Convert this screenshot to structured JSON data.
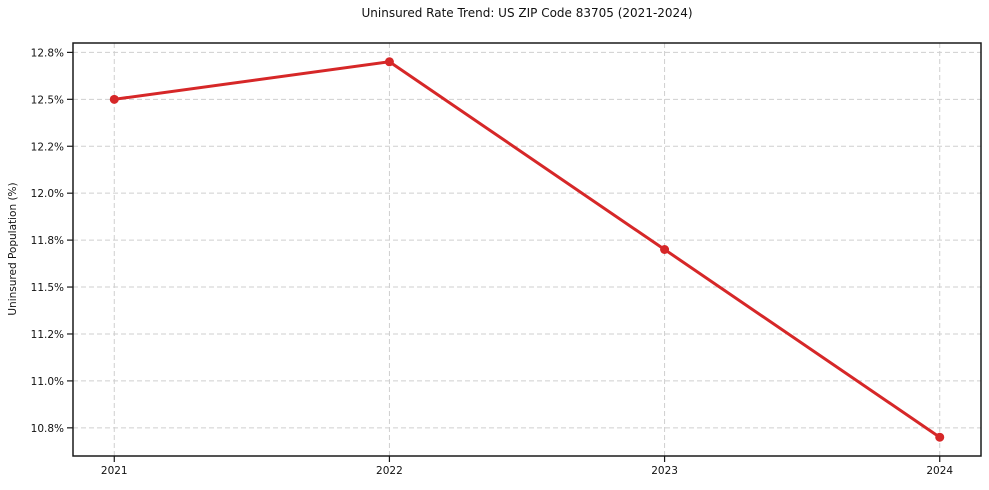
{
  "chart_data": {
    "type": "line",
    "title": "Uninsured Rate Trend: US ZIP Code 83705 (2021-2024)",
    "xlabel": "",
    "ylabel": "Uninsured Population (%)",
    "x": [
      2021,
      2022,
      2023,
      2024
    ],
    "series": [
      {
        "values": [
          12.5,
          12.7,
          11.7,
          10.7
        ],
        "color": "#d62728",
        "marker": "circle",
        "marker_radius": 4.5,
        "line_width": 3
      }
    ],
    "xlim": [
      2020.85,
      2024.15
    ],
    "ylim": [
      10.6,
      12.8
    ],
    "xticks": [
      {
        "value": 2021,
        "label": "2021"
      },
      {
        "value": 2022,
        "label": "2022"
      },
      {
        "value": 2023,
        "label": "2023"
      },
      {
        "value": 2024,
        "label": "2024"
      }
    ],
    "yticks": [
      {
        "value": 10.75,
        "label": "10.8%"
      },
      {
        "value": 11.0,
        "label": "11.0%"
      },
      {
        "value": 11.25,
        "label": "11.2%"
      },
      {
        "value": 11.5,
        "label": "11.5%"
      },
      {
        "value": 11.75,
        "label": "11.8%"
      },
      {
        "value": 12.0,
        "label": "12.0%"
      },
      {
        "value": 12.25,
        "label": "12.2%"
      },
      {
        "value": 12.5,
        "label": "12.5%"
      },
      {
        "value": 12.75,
        "label": "12.8%"
      }
    ],
    "grid": {
      "visible": true,
      "style": "dashed",
      "color": "#cfcfcf"
    },
    "legend": "none",
    "colors": {
      "line": "#d62728",
      "grid": "#cfcfcf",
      "spine": "#1a1a1a",
      "tick_text": "#111111",
      "background": "#ffffff"
    }
  }
}
